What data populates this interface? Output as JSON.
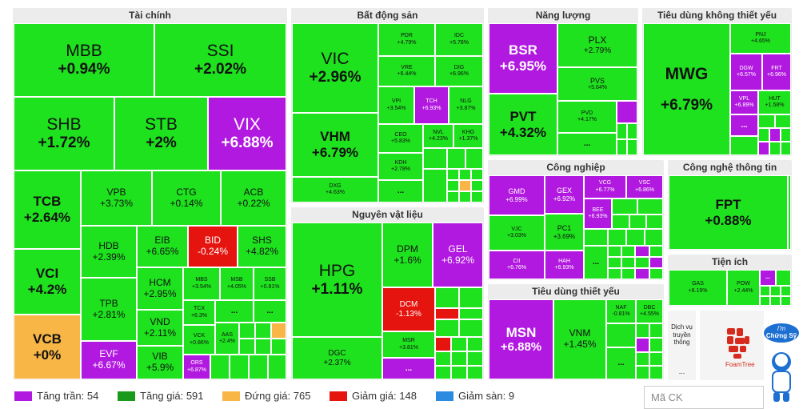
{
  "sectors": {
    "finance": "Tài chính",
    "realestate": "Bất động sản",
    "energy": "Năng lượng",
    "consumer_discretionary": "Tiêu dùng không thiết yếu",
    "materials": "Nguyên vật liệu",
    "industrial": "Công nghiệp",
    "tech": "Công nghệ thông tin",
    "utilities": "Tiện ích",
    "consumer_staples": "Tiêu dùng thiết yếu"
  },
  "tiles": {
    "MBB": {
      "s": "MBB",
      "v": "+0.94%"
    },
    "SSI": {
      "s": "SSI",
      "v": "+2.02%"
    },
    "SHB": {
      "s": "SHB",
      "v": "+1.72%"
    },
    "STB": {
      "s": "STB",
      "v": "+2%"
    },
    "VIX": {
      "s": "VIX",
      "v": "+6.88%"
    },
    "TCB": {
      "s": "TCB",
      "v": "+2.64%"
    },
    "VPB": {
      "s": "VPB",
      "v": "+3.73%"
    },
    "CTG": {
      "s": "CTG",
      "v": "+0.14%"
    },
    "ACB": {
      "s": "ACB",
      "v": "+0.22%"
    },
    "HDB": {
      "s": "HDB",
      "v": "+2.39%"
    },
    "EIB": {
      "s": "EIB",
      "v": "+6.65%"
    },
    "BID": {
      "s": "BID",
      "v": "-0.24%"
    },
    "SHS": {
      "s": "SHS",
      "v": "+4.82%"
    },
    "VCI": {
      "s": "VCI",
      "v": "+4.2%"
    },
    "HCM": {
      "s": "HCM",
      "v": "+2.95%"
    },
    "MBS": {
      "s": "MBS",
      "v": "+3.54%"
    },
    "VPB2": {
      "s": "MSB",
      "v": "+4.05%"
    },
    "SSB": {
      "s": "SSB",
      "v": "+0.81%"
    },
    "TPB": {
      "s": "TPB",
      "v": "+2.81%"
    },
    "TCX": {
      "s": "TCX",
      "v": "+6.3%"
    },
    "VND": {
      "s": "VND",
      "v": "+2.11%"
    },
    "VCK": {
      "s": "VCK",
      "v": "+0.86%"
    },
    "AAS": {
      "s": "AAS",
      "v": "+2.4%"
    },
    "VCB": {
      "s": "VCB",
      "v": "+0%"
    },
    "EVF": {
      "s": "EVF",
      "v": "+6.67%"
    },
    "VIB": {
      "s": "VIB",
      "v": "+5.9%"
    },
    "ORS": {
      "s": "ORS",
      "v": "+6.87%"
    },
    "VIC": {
      "s": "VIC",
      "v": "+2.96%"
    },
    "VHM": {
      "s": "VHM",
      "v": "+6.79%"
    },
    "DXG": {
      "s": "DXG",
      "v": "+4.63%"
    },
    "PDR": {
      "s": "PDR",
      "v": "+4.79%"
    },
    "IDC": {
      "s": "IDC",
      "v": "+5.78%"
    },
    "VRE": {
      "s": "VRE",
      "v": "+6.44%"
    },
    "DIG": {
      "s": "DIG",
      "v": "+6.96%"
    },
    "VPI": {
      "s": "VPI",
      "v": "+3.54%"
    },
    "TCH": {
      "s": "TCH",
      "v": "+6.93%"
    },
    "NLG": {
      "s": "NLG",
      "v": "+3.87%"
    },
    "CEO": {
      "s": "CEO",
      "v": "+5.83%"
    },
    "NVL": {
      "s": "NVL",
      "v": "+4.23%"
    },
    "KHG": {
      "s": "KHG",
      "v": "+1.37%"
    },
    "KDH": {
      "s": "KDH",
      "v": "+2.78%"
    },
    "BSR": {
      "s": "BSR",
      "v": "+6.95%"
    },
    "PLX": {
      "s": "PLX",
      "v": "+2.79%"
    },
    "PVS": {
      "s": "PVS",
      "v": "+5.64%"
    },
    "PVT": {
      "s": "PVT",
      "v": "+4.32%"
    },
    "PVD": {
      "s": "PVD",
      "v": "+4.17%"
    },
    "MWG": {
      "s": "MWG",
      "v": "+6.79%"
    },
    "PNJ": {
      "s": "PNJ",
      "v": "+4.65%"
    },
    "DGW": {
      "s": "DGW",
      "v": "+6.57%"
    },
    "FRT": {
      "s": "FRT",
      "v": "+6.96%"
    },
    "VPL": {
      "s": "VPL",
      "v": "+6.89%"
    },
    "HUT": {
      "s": "HUT",
      "v": "+1.58%"
    },
    "HPG": {
      "s": "HPG",
      "v": "+1.11%"
    },
    "DPM": {
      "s": "DPM",
      "v": "+1.6%"
    },
    "GEL": {
      "s": "GEL",
      "v": "+6.92%"
    },
    "DCM": {
      "s": "DCM",
      "v": "-1.13%"
    },
    "DGC": {
      "s": "DGC",
      "v": "+2.37%"
    },
    "MSR": {
      "s": "MSR",
      "v": "+3.81%"
    },
    "GMD": {
      "s": "GMD",
      "v": "+6.99%"
    },
    "GEX": {
      "s": "GEX",
      "v": "+6.92%"
    },
    "VCG": {
      "s": "VCG",
      "v": "+6.77%"
    },
    "VSC": {
      "s": "VSC",
      "v": "+6.86%"
    },
    "BEE": {
      "s": "BEE",
      "v": "+6.93%"
    },
    "VJC": {
      "s": "VJC",
      "v": "+3.03%"
    },
    "PC1": {
      "s": "PC1",
      "v": "+3.69%"
    },
    "CII": {
      "s": "CII",
      "v": "+6.76%"
    },
    "HAH": {
      "s": "HAH",
      "v": "+6.93%"
    },
    "FPT": {
      "s": "FPT",
      "v": "+0.88%"
    },
    "GAS": {
      "s": "GAS",
      "v": "+6.19%"
    },
    "POW": {
      "s": "POW",
      "v": "+2.44%"
    },
    "MSN": {
      "s": "MSN",
      "v": "+6.88%"
    },
    "VNM": {
      "s": "VNM",
      "v": "+1.45%"
    },
    "NAF": {
      "s": "NAF",
      "v": "-0.81%"
    },
    "DBC": {
      "s": "DBC",
      "v": "+4.55%"
    }
  },
  "more": "...",
  "service": {
    "label": "Dịch vụ truyền thông",
    "more": "...",
    "logo": "FoamTree"
  },
  "legend": [
    {
      "label": "Tăng trần: 54",
      "color": "#b219e0"
    },
    {
      "label": "Tăng giá: 591",
      "color": "#1a9a1a"
    },
    {
      "label": "Đứng giá: 765",
      "color": "#f7b646"
    },
    {
      "label": "Giảm giá: 148",
      "color": "#e5140f"
    },
    {
      "label": "Giảm sàn: 9",
      "color": "#2a8be0"
    }
  ],
  "search": {
    "placeholder": "Mã CK"
  },
  "mascot": {
    "line1": "I'm",
    "line2": "Chứng Sỹ"
  }
}
